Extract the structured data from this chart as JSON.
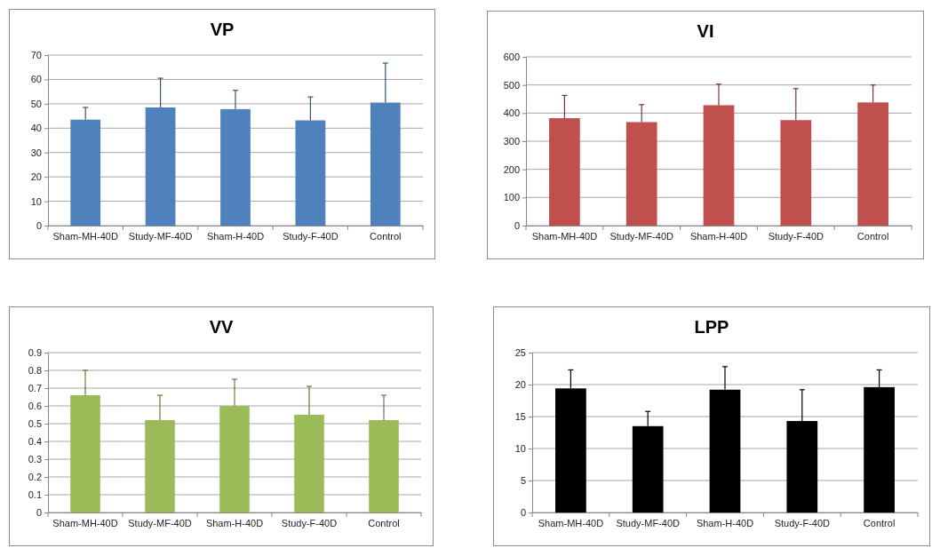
{
  "chart_data": [
    {
      "type": "bar",
      "title": "VP",
      "categories": [
        "Sham-MH-40D",
        "Study-MF-40D",
        "Sham-H-40D",
        "Study-F-40D",
        "Control"
      ],
      "series": [
        {
          "color": "#4f81bd",
          "values": [
            43.5,
            48.5,
            47.8,
            43.2,
            50.5
          ],
          "errors": [
            [
              43.5,
              48.5
            ],
            [
              48.5,
              60.5
            ],
            [
              47.8,
              55.5
            ],
            [
              43.2,
              52.8
            ],
            [
              50.5,
              66.7
            ]
          ]
        }
      ],
      "ylim": [
        0,
        70
      ],
      "yticks": [
        0,
        10,
        20,
        30,
        40,
        50,
        60,
        70
      ],
      "grid": "y"
    },
    {
      "type": "bar",
      "title": "VI",
      "categories": [
        "Sham-MH-40D",
        "Study-MF-40D",
        "Sham-H-40D",
        "Study-F-40D",
        "Control"
      ],
      "series": [
        {
          "color": "#c0504d",
          "values": [
            382,
            368,
            428,
            375,
            438
          ],
          "errors": [
            [
              382,
              463
            ],
            [
              368,
              430
            ],
            [
              428,
              503
            ],
            [
              375,
              487
            ],
            [
              438,
              500
            ]
          ]
        }
      ],
      "ylim": [
        0,
        600
      ],
      "yticks": [
        0,
        100,
        200,
        300,
        400,
        500,
        600
      ],
      "grid": "y"
    },
    {
      "type": "bar",
      "title": "VV",
      "categories": [
        "Sham-MH-40D",
        "Study-MF-40D",
        "Sham-H-40D",
        "Study-F-40D",
        "Control"
      ],
      "series": [
        {
          "color": "#9bbb59",
          "values": [
            0.66,
            0.52,
            0.6,
            0.55,
            0.52
          ],
          "errors": [
            [
              0.66,
              0.8
            ],
            [
              0.52,
              0.66
            ],
            [
              0.6,
              0.75
            ],
            [
              0.55,
              0.71
            ],
            [
              0.52,
              0.66
            ]
          ]
        }
      ],
      "ylim": [
        0,
        0.9
      ],
      "yticks": [
        0,
        0.1,
        0.2,
        0.3,
        0.4,
        0.5,
        0.6,
        0.7,
        0.8,
        0.9
      ],
      "grid": "y"
    },
    {
      "type": "bar",
      "title": "LPP",
      "categories": [
        "Sham-MH-40D",
        "Study-MF-40D",
        "Sham-H-40D",
        "Study-F-40D",
        "Control"
      ],
      "series": [
        {
          "color": "#000000",
          "values": [
            19.4,
            13.5,
            19.2,
            14.3,
            19.6
          ],
          "errors": [
            [
              19.4,
              22.3
            ],
            [
              13.5,
              15.8
            ],
            [
              19.2,
              22.8
            ],
            [
              14.3,
              19.2
            ],
            [
              19.6,
              22.3
            ]
          ]
        }
      ],
      "ylim": [
        0,
        25
      ],
      "yticks": [
        0,
        5,
        10,
        15,
        20,
        25
      ],
      "grid": "y"
    }
  ]
}
